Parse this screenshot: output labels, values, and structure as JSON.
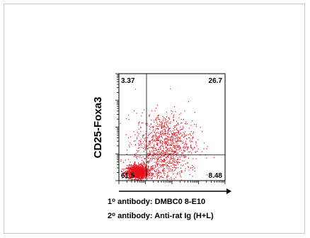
{
  "chart_data": {
    "type": "scatter",
    "title": "",
    "ylabel": "CD25-Foxa3",
    "xlabel": "",
    "quadrants": {
      "upper_left": "3.37",
      "upper_right": "26.7",
      "lower_left": "61.5",
      "lower_right": "8.48"
    },
    "xlim": [
      0,
      1
    ],
    "ylim": [
      0,
      1
    ],
    "gates": {
      "x": 0.26,
      "y": 0.24
    },
    "populations": [
      {
        "cx": 0.17,
        "cy": 0.08,
        "sx": 0.05,
        "sy": 0.03,
        "n": 1400
      },
      {
        "cx": 0.43,
        "cy": 0.36,
        "sx": 0.14,
        "sy": 0.14,
        "n": 950
      },
      {
        "cx": 0.35,
        "cy": 0.14,
        "sx": 0.14,
        "sy": 0.08,
        "n": 300
      }
    ],
    "point_color": "#e8101a",
    "captions": [
      {
        "sup": "1",
        "text": "o antibody:  DMBC0 8-E10"
      },
      {
        "sup": "2",
        "text": "o antibody:  Anti-rat Ig (H+L)"
      }
    ]
  }
}
